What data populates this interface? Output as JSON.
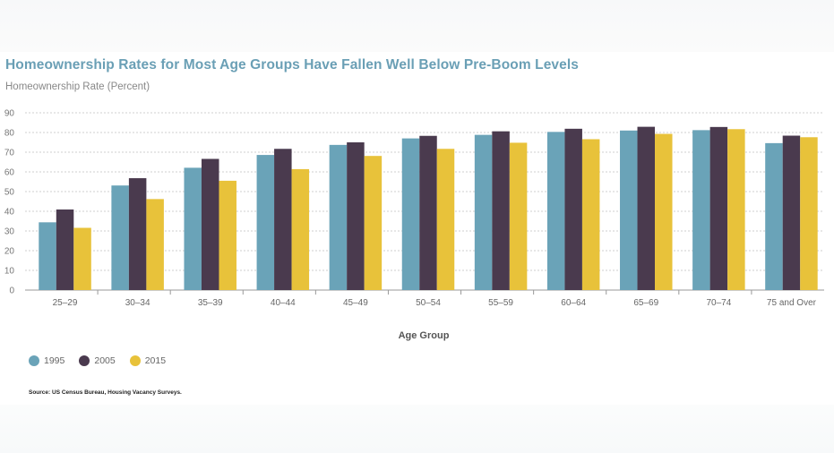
{
  "title": "Homeownership Rates for Most Age Groups Have Fallen Well Below Pre-Boom Levels",
  "subtitle": "Homeownership Rate (Percent)",
  "source": "Source: US Census Bureau, Housing Vacancy Surveys.",
  "chart_data": {
    "type": "bar",
    "title": "Homeownership Rates for Most Age Groups Have Fallen Well Below Pre-Boom Levels",
    "ylabel": "Homeownership Rate (Percent)",
    "xlabel": "Age Group",
    "ylim": [
      0,
      90
    ],
    "yticks": [
      0,
      10,
      20,
      30,
      40,
      50,
      60,
      70,
      80,
      90
    ],
    "grid": true,
    "legend_position": "bottom-left",
    "categories": [
      "25–29",
      "30–34",
      "35–39",
      "40–44",
      "45–49",
      "50–54",
      "55–59",
      "60–64",
      "65–69",
      "70–74",
      "75 and Over"
    ],
    "series": [
      {
        "name": "1995",
        "color": "#6aa3b8",
        "values": [
          34.4,
          53.1,
          62.1,
          68.6,
          73.7,
          77.0,
          78.8,
          80.3,
          81.0,
          81.2,
          74.6
        ]
      },
      {
        "name": "2005",
        "color": "#4a3a4e",
        "values": [
          40.9,
          56.8,
          66.6,
          71.7,
          75.0,
          78.3,
          80.6,
          81.9,
          82.9,
          82.8,
          78.4
        ]
      },
      {
        "name": "2015",
        "color": "#e8c23a",
        "values": [
          31.6,
          46.2,
          55.5,
          61.4,
          68.1,
          71.7,
          74.8,
          76.6,
          79.3,
          81.7,
          77.6
        ]
      }
    ]
  }
}
